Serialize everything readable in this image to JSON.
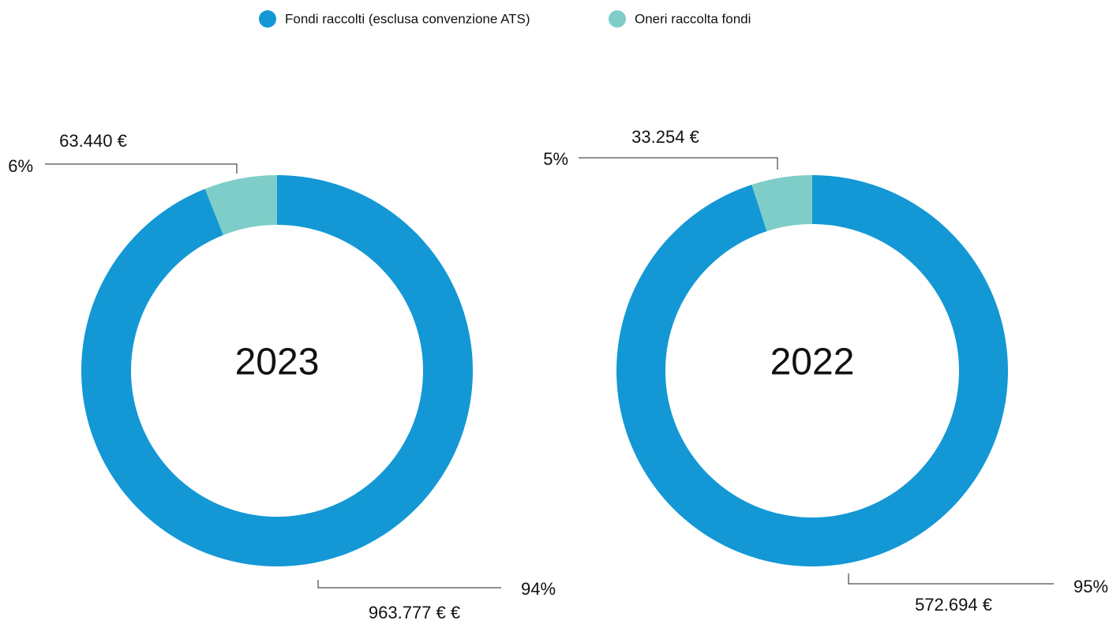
{
  "chart_data": [
    {
      "type": "donut",
      "center_label": "2023",
      "categories": [
        "Fondi raccolti (esclusa convenzione ATS)",
        "Oneri raccolta fondi"
      ],
      "colors": [
        "#1398d5",
        "#7ecdc8"
      ],
      "values": [
        94,
        6
      ],
      "value_labels": [
        "94%",
        "6%"
      ],
      "amount_labels": [
        "963.777 € €",
        "63.440 €"
      ]
    },
    {
      "type": "donut",
      "center_label": "2022",
      "categories": [
        "Fondi raccolti (esclusa convenzione ATS)",
        "Oneri raccolta fondi"
      ],
      "colors": [
        "#1398d5",
        "#7ecdc8"
      ],
      "values": [
        95,
        5
      ],
      "value_labels": [
        "95%",
        "5%"
      ],
      "amount_labels": [
        "572.694 €",
        "33.254 €"
      ]
    }
  ]
}
